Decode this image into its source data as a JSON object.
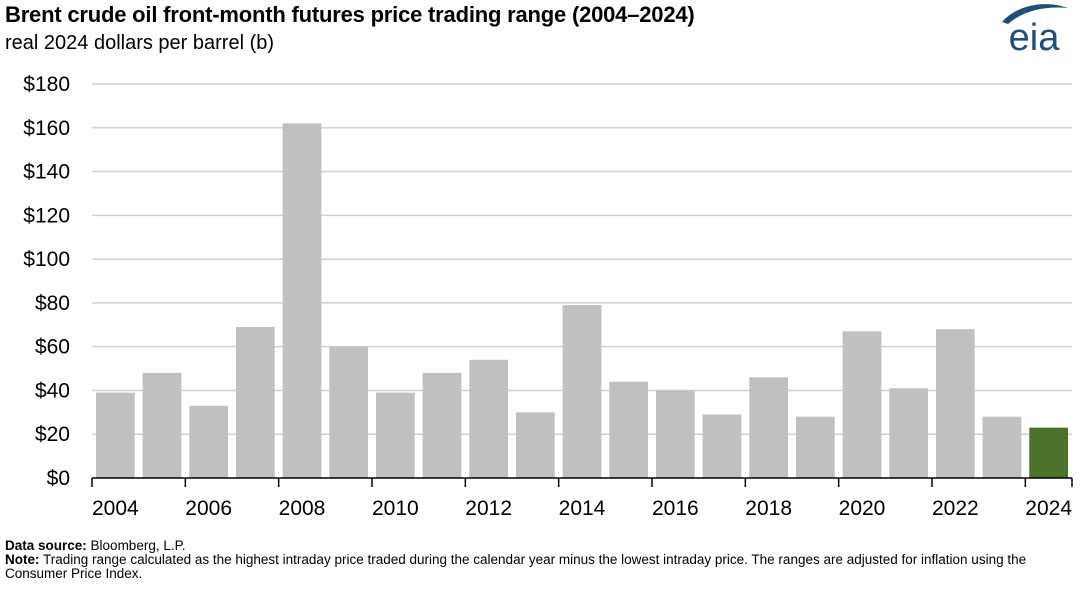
{
  "header": {
    "title": "Brent crude oil front-month futures price trading range (2004–2024)",
    "subtitle": "real 2024 dollars per barrel (b)"
  },
  "logo": {
    "text": "eia",
    "icon": "eia-logo",
    "color": "#1f4e79"
  },
  "chart_data": {
    "type": "bar",
    "categories": [
      "2004",
      "2005",
      "2006",
      "2007",
      "2008",
      "2009",
      "2010",
      "2011",
      "2012",
      "2013",
      "2014",
      "2015",
      "2016",
      "2017",
      "2018",
      "2019",
      "2020",
      "2021",
      "2022",
      "2023",
      "2024"
    ],
    "values": [
      39,
      48,
      33,
      69,
      162,
      60,
      39,
      48,
      54,
      30,
      79,
      44,
      40,
      29,
      46,
      28,
      67,
      41,
      68,
      28,
      23
    ],
    "x_tick_labels": [
      "2004",
      "2006",
      "2008",
      "2010",
      "2012",
      "2014",
      "2016",
      "2018",
      "2020",
      "2022",
      "2024"
    ],
    "y_tick_labels": [
      "$0",
      "$20",
      "$40",
      "$60",
      "$80",
      "$100",
      "$120",
      "$140",
      "$160",
      "$180"
    ],
    "ylim": [
      0,
      180
    ],
    "y_step": 20,
    "grid": true,
    "colors": {
      "bar": "#c0c0c0",
      "highlight": "#4a7229",
      "grid": "#d0d0d0",
      "axis": "#000000"
    },
    "highlight_category": "2024"
  },
  "footer": {
    "source_label": "Data source:",
    "source_text": "Bloomberg, L.P.",
    "note_label": "Note:",
    "note_text": "Trading range calculated as the highest intraday price traded during the calendar year minus the lowest intraday price. The ranges are adjusted for inflation using the Consumer Price Index."
  }
}
